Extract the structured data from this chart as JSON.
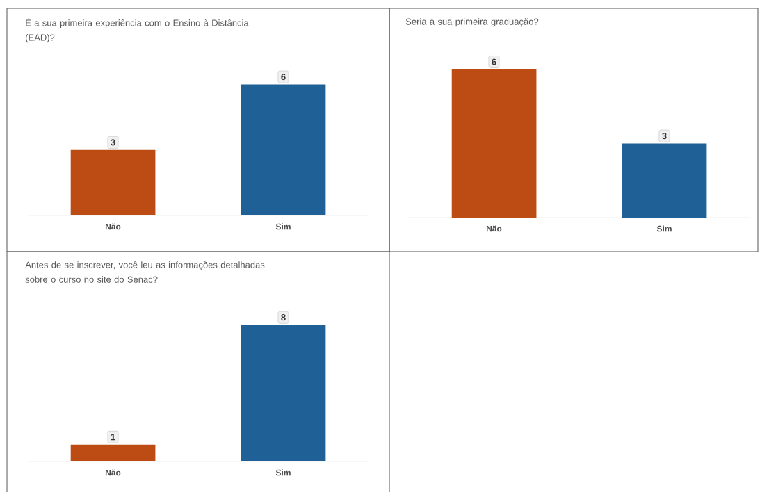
{
  "chart_data": [
    {
      "type": "bar",
      "title": "É a sua primeira experiência com o Ensino à Distância (EAD)?",
      "categories": [
        "Não",
        "Sim"
      ],
      "values": [
        3,
        6
      ],
      "colors": [
        "#bd4b14",
        "#1f6096"
      ],
      "data_labels": true
    },
    {
      "type": "bar",
      "title": "Seria a sua primeira graduação?",
      "categories": [
        "Não",
        "Sim"
      ],
      "values": [
        6,
        3
      ],
      "colors": [
        "#bd4b14",
        "#1f6096"
      ],
      "data_labels": true
    },
    {
      "type": "bar",
      "title": "Antes de se inscrever, você leu as informações detalhadas sobre o curso no site do Senac?",
      "categories": [
        "Não",
        "Sim"
      ],
      "values": [
        1,
        8
      ],
      "colors": [
        "#bd4b14",
        "#1f6096"
      ],
      "data_labels": true
    }
  ]
}
